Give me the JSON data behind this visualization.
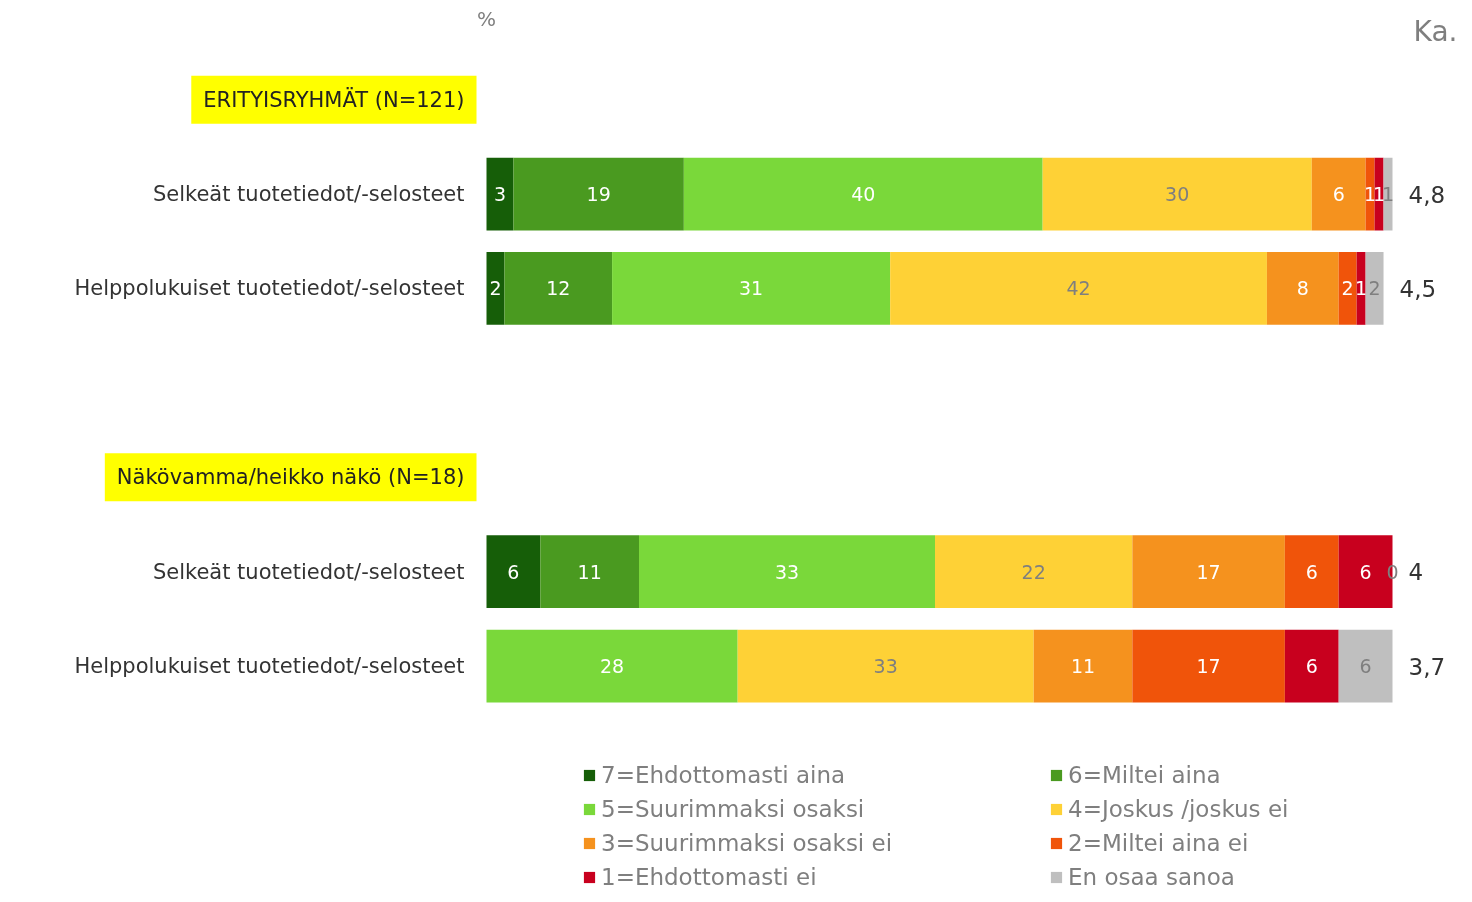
{
  "chart_data": {
    "type": "bar",
    "orientation": "horizontal",
    "stacked": true,
    "categories": [
      "ERITYISRYHMÄT (N=121)",
      "Selkeät tuotetiedot/-selosteet",
      "Helppolukuiset tuotetiedot/-selosteet",
      null,
      "Näkövamma/heikko näkö (N=18)",
      "Selkeät tuotetiedot/-selosteet",
      "Helppolukuiset tuotetiedot/-selosteet"
    ],
    "series": [
      {
        "name": "7=Ehdottomasti aina",
        "color": "#165e08",
        "values": [
          null,
          3,
          2,
          null,
          null,
          6,
          0
        ],
        "value_labels": [
          null,
          "3",
          "2",
          null,
          null,
          "6",
          null
        ]
      },
      {
        "name": "6=Miltei aina",
        "color": "#4a9a20",
        "values": [
          null,
          19,
          12,
          null,
          null,
          11,
          0
        ],
        "value_labels": [
          null,
          "19",
          "12",
          null,
          null,
          "11",
          null
        ]
      },
      {
        "name": "5=Suurimmaksi osaksi",
        "color": "#7ad83a",
        "values": [
          null,
          40,
          31,
          null,
          null,
          33,
          28
        ],
        "value_labels": [
          null,
          "40",
          "31",
          null,
          null,
          "33",
          "28"
        ]
      },
      {
        "name": "4=Joskus /joskus ei",
        "color": "#fed136",
        "values": [
          null,
          30,
          42,
          null,
          null,
          22,
          33
        ],
        "value_labels": [
          null,
          "30",
          "42",
          null,
          null,
          "22",
          "33"
        ]
      },
      {
        "name": "3=Suurimmaksi osaksi ei",
        "color": "#f5921e",
        "values": [
          null,
          6,
          8,
          null,
          null,
          17,
          11
        ],
        "value_labels": [
          null,
          "6",
          "8",
          null,
          null,
          "17",
          "11"
        ]
      },
      {
        "name": "2=Miltei aina ei",
        "color": "#f0540a",
        "values": [
          null,
          1,
          2,
          null,
          null,
          6,
          17
        ],
        "value_labels": [
          null,
          "1",
          "2",
          null,
          null,
          "6",
          "17"
        ]
      },
      {
        "name": "1=Ehdottomasti ei",
        "color": "#c8001e",
        "values": [
          null,
          1,
          1,
          null,
          null,
          6,
          6
        ],
        "value_labels": [
          null,
          "1",
          "1",
          null,
          null,
          "6",
          "6"
        ]
      },
      {
        "name": "En osaa sanoa",
        "color": "#bfbfbf",
        "values": [
          null,
          1,
          2,
          null,
          null,
          0,
          6
        ],
        "value_labels": [
          null,
          "1",
          "2",
          null,
          null,
          "0",
          "6"
        ]
      }
    ],
    "annotations": [
      "%",
      "Ka.",
      "4,8",
      "4,5",
      "4",
      "3,7"
    ],
    "legend": "bottom",
    "grid": false
  }
}
